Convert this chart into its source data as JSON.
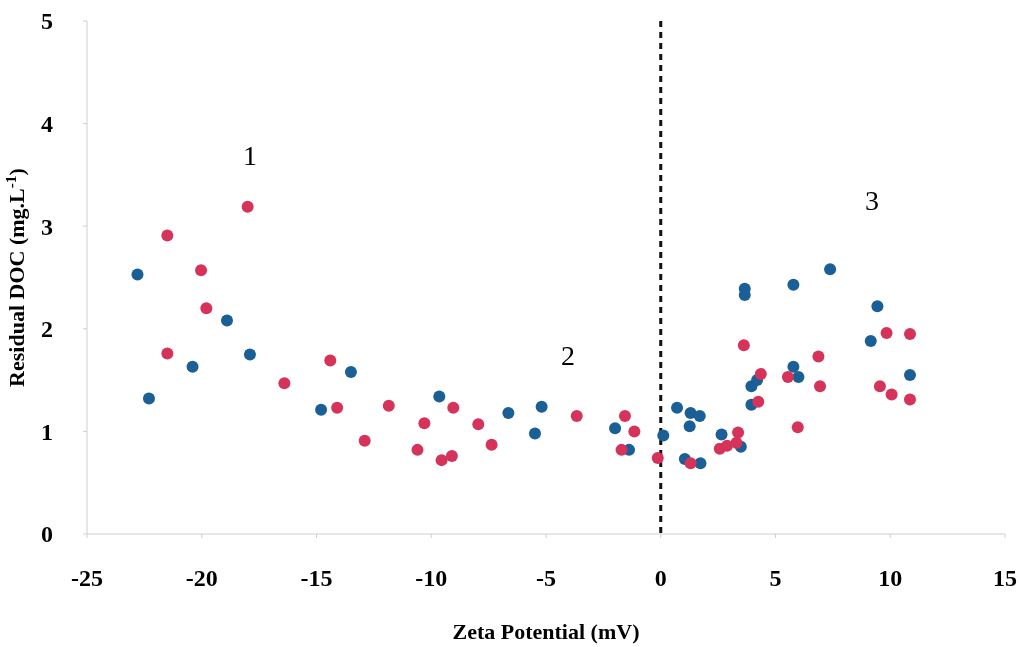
{
  "chart_data": {
    "type": "scatter",
    "xlabel": "Zeta Potential (mV)",
    "ylabel": "Residual DOC (mg.L$^{-1}$)",
    "xlim": [
      -25,
      15
    ],
    "xticks": [
      -25,
      -20,
      -15,
      -10,
      -5,
      0,
      5,
      10,
      15
    ],
    "ylim": [
      0,
      5
    ],
    "yticks": [
      0,
      1,
      2,
      3,
      4,
      5
    ],
    "marker": "circle",
    "grid": false,
    "ref_lines": [
      {
        "axis": "x",
        "value": 0,
        "line_style": "dashed",
        "color": "#111111"
      }
    ],
    "annotations": [
      "1",
      "2",
      "3"
    ],
    "series": [
      {
        "color": "#1a5f96",
        "x": [
          -22.8,
          -22.3,
          -20.4,
          -18.9,
          -17.9,
          -14.8,
          -13.5,
          -9.65,
          -6.64,
          -5.48,
          -5.19,
          -1.99,
          -1.38,
          0.11,
          0.71,
          1.05,
          1.26,
          1.3,
          1.7,
          1.73,
          2.65,
          3.49,
          3.66,
          3.66,
          3.95,
          3.95,
          4.2,
          5.78,
          5.78,
          6.0,
          7.38,
          9.15,
          9.44,
          10.86
        ],
        "values": [
          2.53,
          1.32,
          1.63,
          2.08,
          1.75,
          1.21,
          1.58,
          1.34,
          1.18,
          0.98,
          1.24,
          1.03,
          0.82,
          0.96,
          1.23,
          0.73,
          1.05,
          1.18,
          1.15,
          0.69,
          0.97,
          0.85,
          2.39,
          2.33,
          1.44,
          1.26,
          1.5,
          2.43,
          1.63,
          1.53,
          2.58,
          1.88,
          2.22,
          1.55
        ]
      },
      {
        "color": "#d6335a",
        "x": [
          -21.5,
          -21.5,
          -20.03,
          -19.8,
          -18.0,
          -16.4,
          -14.4,
          -14.1,
          -12.9,
          -11.85,
          -10.6,
          -10.3,
          -9.55,
          -9.1,
          -9.04,
          -7.95,
          -7.37,
          -3.66,
          -1.71,
          -1.56,
          -1.15,
          -0.13,
          1.3,
          2.57,
          2.89,
          3.3,
          3.37,
          3.62,
          4.25,
          4.36,
          5.54,
          5.97,
          6.87,
          6.94,
          9.55,
          9.84,
          10.06,
          10.86,
          10.86
        ],
        "values": [
          2.91,
          1.76,
          2.57,
          2.2,
          3.19,
          1.47,
          1.69,
          1.23,
          0.91,
          1.25,
          0.82,
          1.08,
          0.72,
          0.76,
          1.23,
          1.07,
          0.87,
          1.15,
          0.82,
          1.15,
          1.0,
          0.74,
          0.69,
          0.83,
          0.86,
          0.89,
          0.99,
          1.84,
          1.29,
          1.56,
          1.53,
          1.04,
          1.73,
          1.44,
          1.44,
          1.96,
          1.36,
          1.95,
          1.31
        ]
      }
    ]
  }
}
